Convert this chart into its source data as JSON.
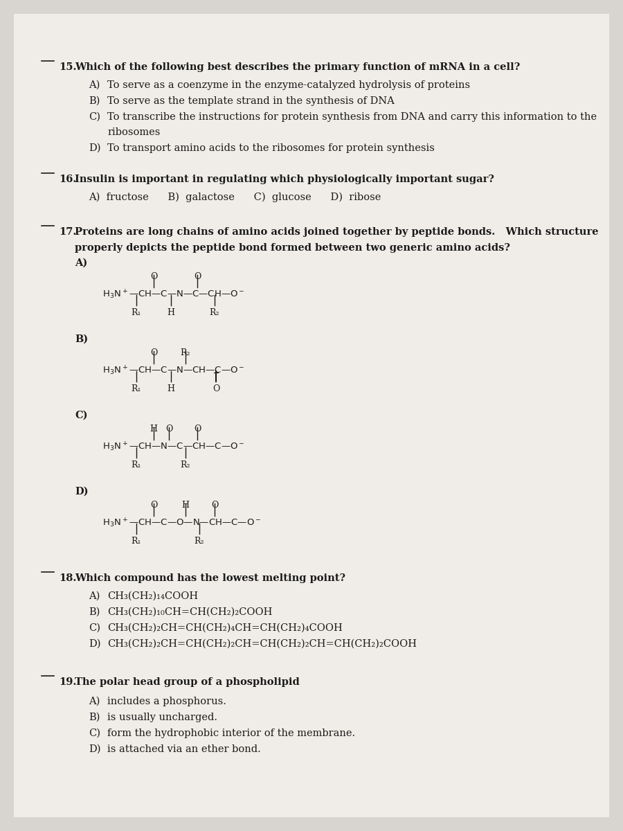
{
  "page_bg": "#d8d4cf",
  "paper_bg": "#f0ede8",
  "text_color": "#1a1a1a",
  "q15": {
    "num": "15.",
    "question": "Which of the following best describes the primary function of mRNA in a cell?",
    "A": "To serve as a coenzyme in the enzyme-catalyzed hydrolysis of proteins",
    "B": "To serve as the template strand in the synthesis of DNA",
    "C": "To transcribe the instructions for protein synthesis from DNA and carry this information to the",
    "C2": "ribosomes",
    "D": "To transport amino acids to the ribosomes for protein synthesis"
  },
  "q16": {
    "num": "16.",
    "question": "Insulin is important in regulating which physiologically important sugar?",
    "answers_inline": "A)  fructose      B)  galactose      C)  glucose      D)  ribose"
  },
  "q17": {
    "num": "17.",
    "question": "Proteins are long chains of amino acids joined together by peptide bonds.   Which structure",
    "question2": "properly depicts the peptide bond formed between two generic amino acids?"
  },
  "q18": {
    "num": "18.",
    "question": "Which compound has the lowest melting point?",
    "A": "CH₃(CH₂)₁₄COOH",
    "B": "CH₃(CH₂)₁₀CH=CH(CH₂)₂COOH",
    "C": "CH₃(CH₂)₂CH=CH(CH₂)₄CH=CH(CH₂)₄COOH",
    "D": "CH₃(CH₂)₂CH=CH(CH₂)₂CH=CH(CH₂)₂CH=CH(CH₂)₂COOH"
  },
  "q19": {
    "num": "19.",
    "question": "The polar head group of a phospholipid",
    "A": "includes a phosphorus.",
    "B": "is usually uncharged.",
    "C": "form the hydrophobic interior of the membrane.",
    "D": "is attached via an ether bond."
  }
}
